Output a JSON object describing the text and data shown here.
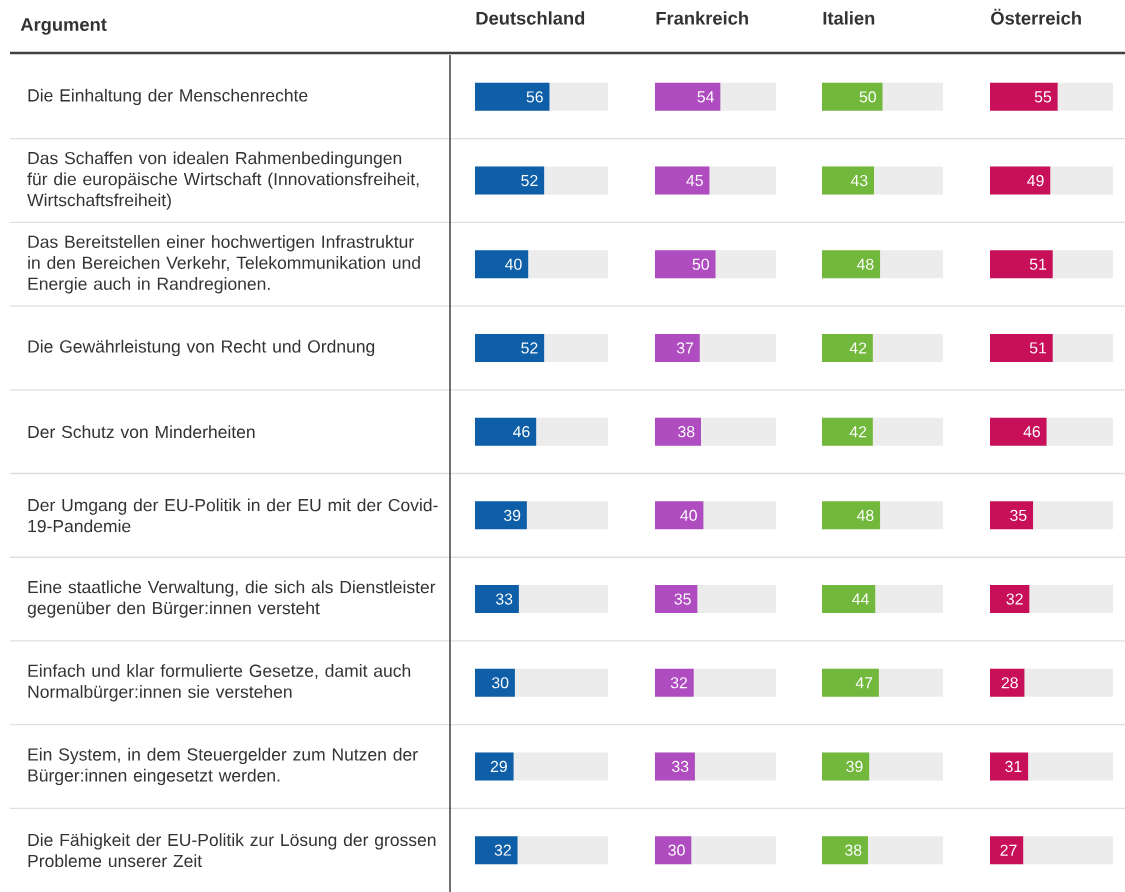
{
  "chart_data": [
    {
      "type": "bar",
      "orientation": "horizontal",
      "title": "Deutschland",
      "ylabel": "Argument",
      "tick_labels": "y",
      "data_labels": true,
      "color": "#0f5fa8",
      "xlim": [
        0,
        100
      ],
      "categories": [
        "Die Einhaltung der Menschenrechte",
        "Das Schaffen von idealen Rahmenbedingungen für die europäische Wirtschaft (Innovationsfreiheit, Wirtschaftsfreiheit)",
        "Das Bereitstellen einer hochwertigen Infrastruktur in den Bereichen Verkehr, Telekommunikation und Energie auch in Randregionen.",
        "Die Gewährleistung von Recht und Ordnung",
        "Der Schutz von Minderheiten",
        "Der Umgang der EU-Politik in der EU mit der Covid-19-Pandemie",
        "Eine staatliche Verwaltung, die sich als Dienstleister gegenüber den Bürger:innen versteht",
        "Einfach und klar formulierte Gesetze, damit auch Normalbürger:innen sie verstehen",
        "Ein System, in dem Steuergelder zum Nutzen der Bürger:innen eingesetzt werden.",
        "Die Fähigkeit der EU-Politik zur Lösung der grossen Probleme unserer Zeit"
      ],
      "values": [
        56,
        52,
        40,
        52,
        46,
        39,
        33,
        30,
        29,
        32
      ]
    },
    {
      "type": "bar",
      "orientation": "horizontal",
      "title": "Frankreich",
      "tick_labels": false,
      "data_labels": true,
      "color": "#ae4cc0",
      "xlim": [
        0,
        100
      ],
      "values": [
        54,
        45,
        50,
        37,
        38,
        40,
        35,
        32,
        33,
        30
      ]
    },
    {
      "type": "bar",
      "orientation": "horizontal",
      "title": "Italien",
      "tick_labels": false,
      "data_labels": true,
      "color": "#72b83c",
      "xlim": [
        0,
        100
      ],
      "values": [
        50,
        43,
        48,
        42,
        42,
        48,
        44,
        47,
        39,
        38
      ]
    },
    {
      "type": "bar",
      "orientation": "horizontal",
      "title": "Österreich",
      "tick_labels": false,
      "data_labels": true,
      "color": "#c8105a",
      "xlim": [
        0,
        100
      ],
      "values": [
        55,
        49,
        51,
        51,
        46,
        35,
        32,
        28,
        31,
        27
      ]
    }
  ]
}
